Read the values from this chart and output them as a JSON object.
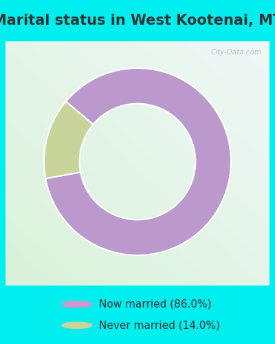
{
  "title": "Marital status in West Kootenai, MT",
  "slices": [
    86.0,
    14.0
  ],
  "labels": [
    "Now married (86.0%)",
    "Never married (14.0%)"
  ],
  "colors": [
    "#bb99cc",
    "#c8d49a"
  ],
  "outer_bg_color": "#00eeee",
  "chart_bg_color_tl": "#e8f5e8",
  "chart_bg_color_br": "#ddeeff",
  "legend_marker_colors": [
    "#cc99cc",
    "#c8d49a"
  ],
  "donut_width": 0.38,
  "start_angle": 140,
  "title_fontsize": 15,
  "legend_fontsize": 11,
  "watermark": "City-Data.com",
  "watermark_color": "#aabbcc"
}
